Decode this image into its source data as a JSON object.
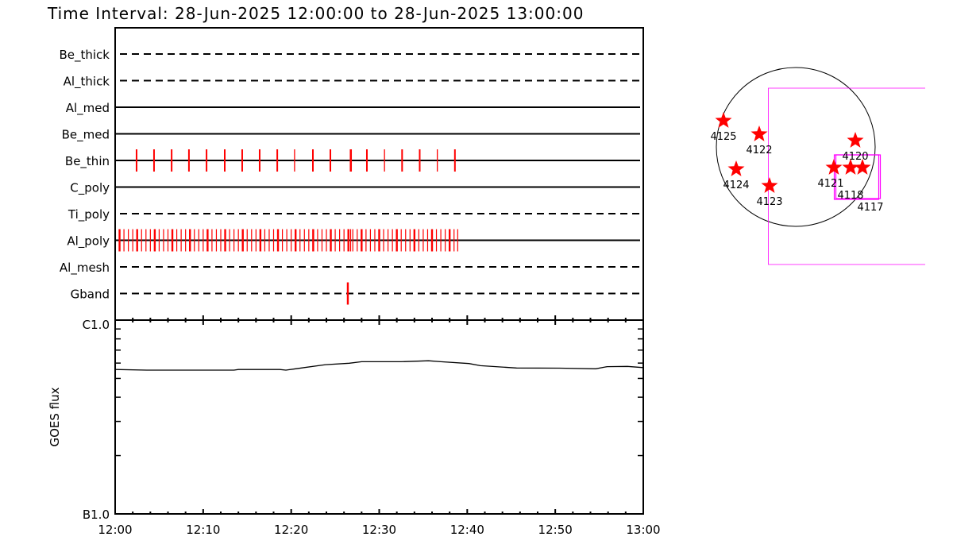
{
  "title": "Time Interval: 28-Jun-2025 12:00:00 to 28-Jun-2025 13:00:00",
  "chart_data": [
    {
      "type": "timeline",
      "x_range": [
        "12:00:00",
        "13:00:00"
      ],
      "x_ticks": [
        "12:00",
        "12:10",
        "12:20",
        "12:30",
        "12:40",
        "12:50",
        "13:00"
      ],
      "tick_color": "#ff0000",
      "rows": [
        {
          "name": "Be_thick",
          "style": "dashed",
          "times": []
        },
        {
          "name": "Al_thick",
          "style": "dashed",
          "times": []
        },
        {
          "name": "Al_med",
          "style": "solid",
          "times": []
        },
        {
          "name": "Be_med",
          "style": "solid",
          "times": []
        },
        {
          "name": "Be_thin",
          "style": "solid",
          "times": [
            "12:02:26",
            "12:04:25",
            "12:06:25",
            "12:08:23",
            "12:10:23",
            "12:12:27",
            "12:14:26",
            "12:16:25",
            "12:18:25",
            "12:20:23",
            "12:22:28",
            "12:24:27",
            "12:26:43",
            "12:26:48",
            "12:28:36",
            "12:30:36",
            "12:32:36",
            "12:34:36",
            "12:36:36",
            "12:38:36"
          ]
        },
        {
          "name": "C_poly",
          "style": "solid",
          "times": []
        },
        {
          "name": "Ti_poly",
          "style": "dashed",
          "times": []
        },
        {
          "name": "Al_poly",
          "style": "solid",
          "times": [
            "12:00:30",
            "12:01:00",
            "12:01:30",
            "12:02:00",
            "12:02:30",
            "12:03:00",
            "12:03:30",
            "12:04:00",
            "12:04:30",
            "12:05:00",
            "12:05:30",
            "12:06:00",
            "12:06:30",
            "12:07:00",
            "12:07:30",
            "12:08:00",
            "12:08:30",
            "12:09:00",
            "12:09:30",
            "12:10:00",
            "12:10:30",
            "12:11:00",
            "12:11:30",
            "12:12:00",
            "12:12:30",
            "12:13:00",
            "12:13:30",
            "12:14:00",
            "12:14:30",
            "12:15:00",
            "12:15:30",
            "12:16:00",
            "12:16:30",
            "12:17:00",
            "12:17:30",
            "12:18:00",
            "12:18:30",
            "12:19:00",
            "12:19:30",
            "12:20:00",
            "12:20:30",
            "12:21:00",
            "12:21:30",
            "12:22:00",
            "12:22:30",
            "12:23:00",
            "12:23:30",
            "12:24:00",
            "12:24:30",
            "12:25:00",
            "12:25:30",
            "12:26:00",
            "12:26:30",
            "12:26:45",
            "12:27:00",
            "12:27:30",
            "12:28:00",
            "12:28:30",
            "12:29:00",
            "12:29:30",
            "12:30:00",
            "12:30:30",
            "12:31:00",
            "12:31:30",
            "12:32:00",
            "12:32:30",
            "12:33:00",
            "12:33:30",
            "12:34:00",
            "12:34:30",
            "12:35:00",
            "12:35:30",
            "12:36:00",
            "12:36:30",
            "12:37:00",
            "12:37:30",
            "12:38:00",
            "12:38:30",
            "12:38:55"
          ]
        },
        {
          "name": "Al_mesh",
          "style": "dashed",
          "times": []
        },
        {
          "name": "Gband",
          "style": "dashed",
          "times": [
            "12:26:26"
          ]
        }
      ]
    },
    {
      "type": "line",
      "ylabel": "GOES flux",
      "y_scale": "log",
      "y_range": [
        1e-07,
        1e-06
      ],
      "y_tick_labels": [
        "B1.0",
        "C1.0"
      ],
      "x_ticks": [
        "12:00",
        "12:10",
        "12:20",
        "12:30",
        "12:40",
        "12:50",
        "13:00"
      ],
      "line_color": "#000000",
      "x": [
        "12:00:00",
        "12:03:36",
        "12:13:30",
        "12:14:00",
        "12:18:42",
        "12:19:24",
        "12:20:30",
        "12:23:54",
        "12:26:36",
        "12:28:00",
        "12:32:30",
        "12:35:36",
        "12:37:00",
        "12:40:12",
        "12:41:30",
        "12:45:36",
        "12:50:30",
        "12:54:36",
        "12:55:54",
        "12:58:12",
        "13:00:00"
      ],
      "y": [
        5.56e-07,
        5.52e-07,
        5.52e-07,
        5.56e-07,
        5.56e-07,
        5.52e-07,
        5.61e-07,
        5.89e-07,
        5.99e-07,
        6.1e-07,
        6.1e-07,
        6.17e-07,
        6.1e-07,
        5.97e-07,
        5.82e-07,
        5.66e-07,
        5.65e-07,
        5.61e-07,
        5.75e-07,
        5.77e-07,
        5.69e-07
      ]
    }
  ],
  "sun_map": {
    "star_color": "#ff0000",
    "fov_color": "#ff00ff",
    "regions": [
      {
        "label": "4125"
      },
      {
        "label": "4122"
      },
      {
        "label": "4124"
      },
      {
        "label": "4123"
      },
      {
        "label": "4120"
      },
      {
        "label": "4121"
      },
      {
        "label": "4118"
      },
      {
        "label": "4117"
      }
    ]
  }
}
